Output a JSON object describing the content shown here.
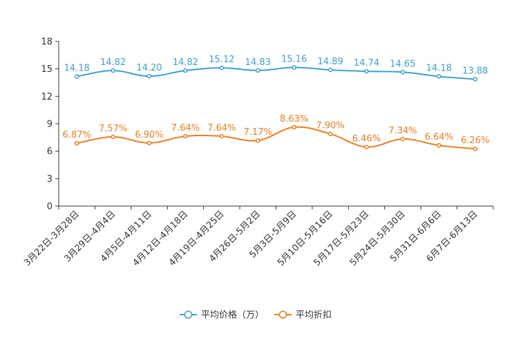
{
  "chart_data": {
    "type": "line",
    "categories": [
      "3月22日-3月28日",
      "3月29日-4月4日",
      "4月5日-4月11日",
      "4月12日-4月18日",
      "4月19日-4月25日",
      "4月26日-5月2日",
      "5月3日-5月9日",
      "5月10日-5月16日",
      "5月17日-5月23日",
      "5月24日-5月30日",
      "5月31日-6月6日",
      "6月7日-6月13日"
    ],
    "ylim": [
      0,
      18
    ],
    "yticks": [
      0,
      3,
      6,
      9,
      12,
      15,
      18
    ],
    "ytick_labels": [
      "0",
      "3",
      "6",
      "9",
      "12",
      "15",
      "18"
    ],
    "series": [
      {
        "name": "平均价格（万）",
        "color": "#3ba1cc",
        "values": [
          14.18,
          14.82,
          14.2,
          14.82,
          15.12,
          14.83,
          15.16,
          14.89,
          14.74,
          14.65,
          14.18,
          13.88
        ],
        "labels": [
          "14.18",
          "14.82",
          "14.20",
          "14.82",
          "15.12",
          "14.83",
          "15.16",
          "14.89",
          "14.74",
          "14.65",
          "14.18",
          "13.88"
        ]
      },
      {
        "name": "平均折扣",
        "color": "#f07c1f",
        "values": [
          6.87,
          7.57,
          6.9,
          7.64,
          7.64,
          7.17,
          8.63,
          7.9,
          6.46,
          7.34,
          6.64,
          6.26
        ],
        "labels": [
          "6.87%",
          "7.57%",
          "6.90%",
          "7.64%",
          "7.64%",
          "7.17%",
          "8.63%",
          "7.90%",
          "6.46%",
          "7.34%",
          "6.64%",
          "6.26%"
        ]
      }
    ],
    "legend_position": "bottom-center"
  }
}
